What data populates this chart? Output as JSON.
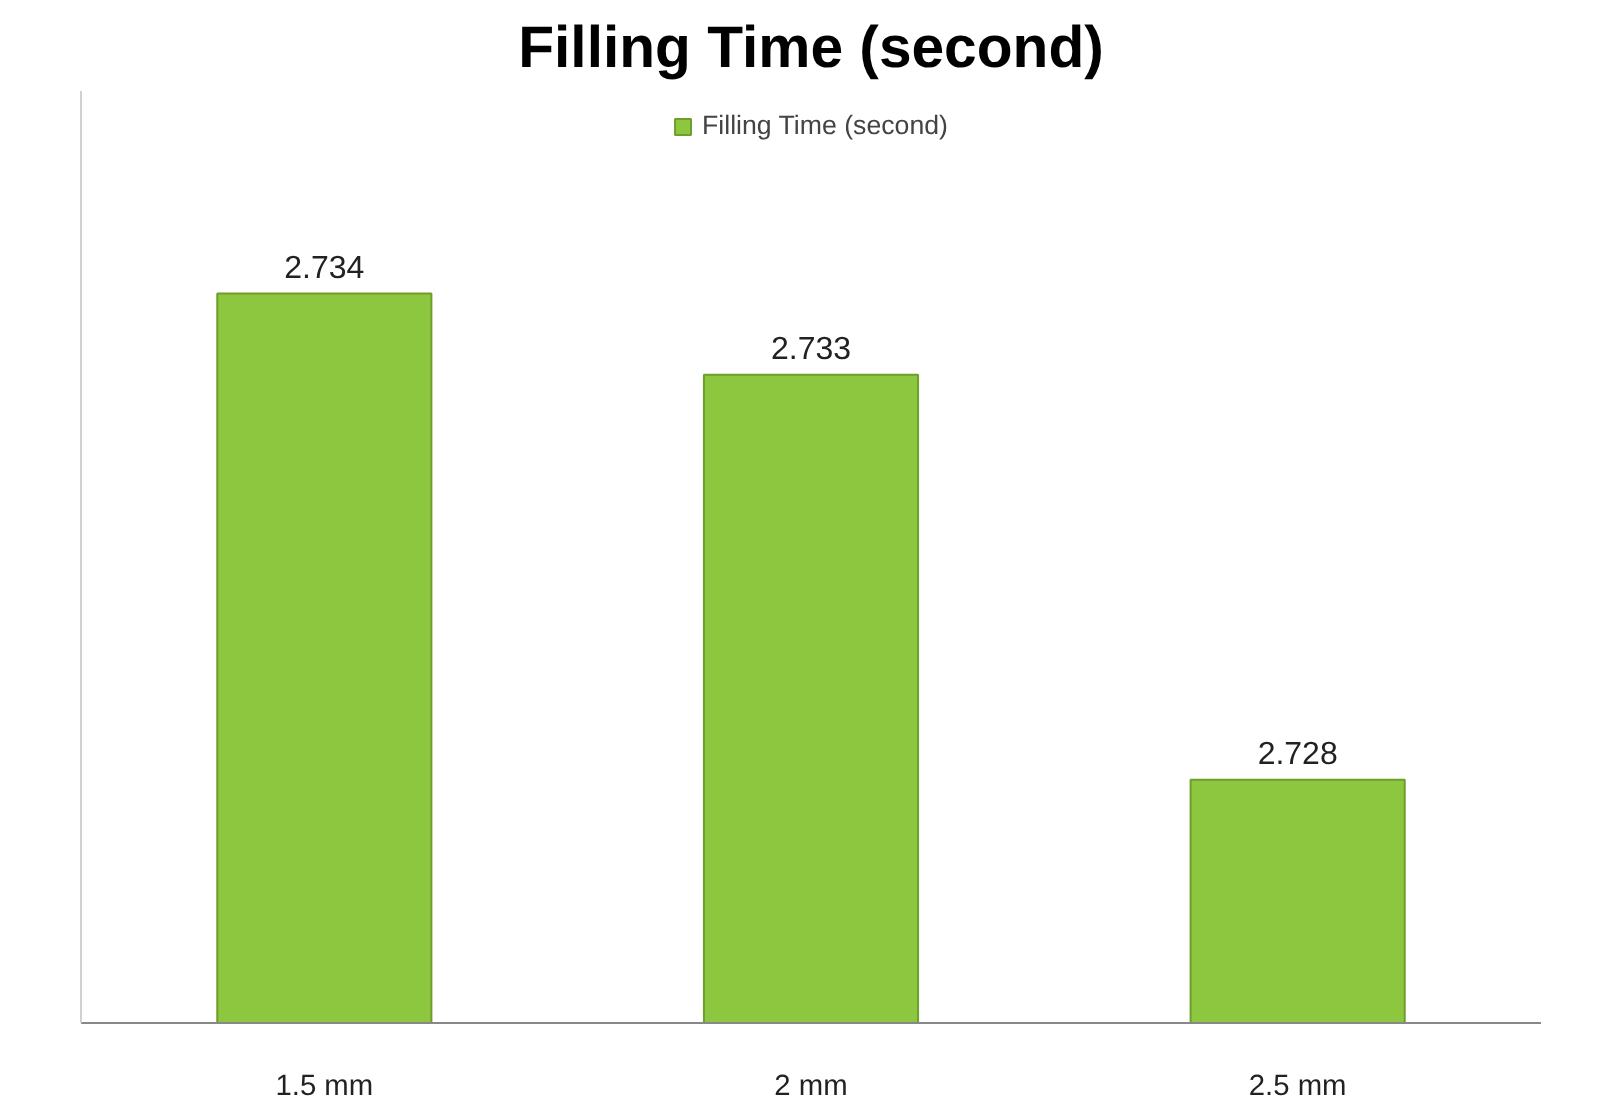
{
  "chart_data": {
    "type": "bar",
    "title": "Filling Time (second)",
    "categories": [
      "1.5 mm",
      "2 mm",
      "2.5 mm"
    ],
    "series": [
      {
        "name": "Filling Time (second)",
        "color": "#8dc63f",
        "values": [
          2.734,
          2.733,
          2.728
        ]
      }
    ],
    "ylim": [
      2.725,
      2.7365
    ],
    "tick_labels": "x",
    "data_labels": true,
    "grid": false,
    "legend": "top"
  }
}
